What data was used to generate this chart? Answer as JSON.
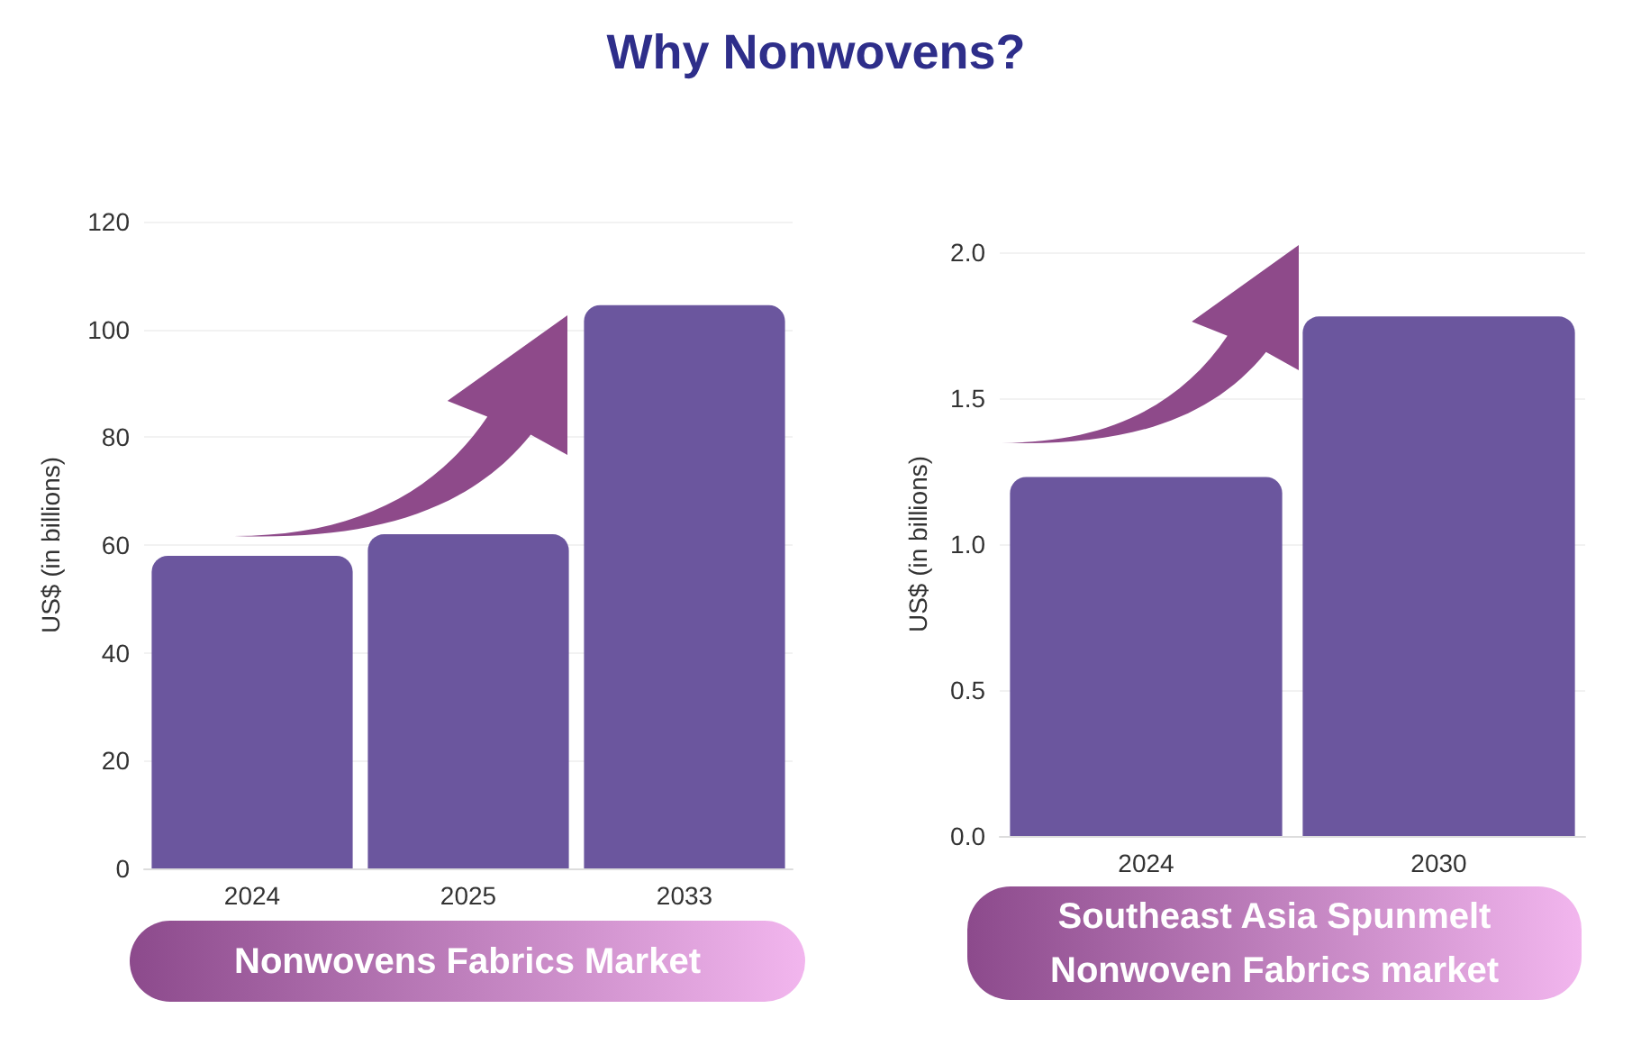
{
  "chart_data": [
    {
      "type": "bar",
      "title": "Why Nonwovens?",
      "xlabel": "Nonwovens Fabrics Market",
      "ylabel": "US$ (in billions)",
      "categories": [
        "2024",
        "2025",
        "2033"
      ],
      "values": [
        58,
        62,
        104.5
      ],
      "color": "#6b569e",
      "ylim": [
        0,
        120
      ],
      "yticks": [
        0,
        20,
        40,
        60,
        80,
        100,
        120
      ],
      "grid": "y"
    },
    {
      "type": "bar",
      "xlabel": "Southeast Asia Spunmelt Nonwoven Fabrics market",
      "ylabel": "US$ (in billions)",
      "categories": [
        "2024",
        "2030"
      ],
      "values": [
        1.23,
        1.78
      ],
      "color": "#6b569e",
      "ylim": [
        0,
        2
      ],
      "yticks": [
        {
          "value": 0,
          "label": "0.0"
        },
        {
          "value": 0.5,
          "label": "0.5"
        },
        {
          "value": 1,
          "label": "1.0"
        },
        {
          "value": 1.5,
          "label": "1.5"
        },
        {
          "value": 2,
          "label": "2.0"
        }
      ],
      "grid": "y"
    }
  ]
}
